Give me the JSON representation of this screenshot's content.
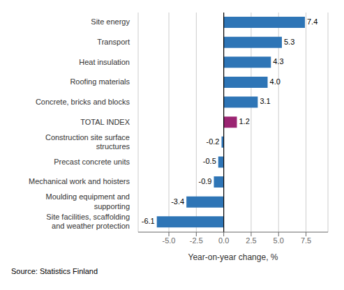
{
  "chart_data": {
    "type": "bar",
    "orientation": "horizontal",
    "categories": [
      "Site facilities, scaffolding and weather protection",
      "Moulding equipment and supporting",
      "Mechanical work and hoisters",
      "Precast concrete units",
      "Construction site surface structures",
      "TOTAL INDEX",
      "Concrete, bricks and blocks",
      "Roofing materials",
      "Heat insulation",
      "Transport",
      "Site energy"
    ],
    "values": [
      -6.1,
      -3.4,
      -0.9,
      -0.5,
      -0.2,
      1.2,
      3.1,
      4.0,
      4.3,
      5.3,
      7.4
    ],
    "value_labels": [
      "-6.1",
      "-3.4",
      "-0.9",
      "-0.5",
      "-0.2",
      "1.2",
      "3.1",
      "4.0",
      "4.3",
      "5.3",
      "7.4"
    ],
    "colors": [
      "#2e75b6",
      "#2e75b6",
      "#2e75b6",
      "#2e75b6",
      "#2e75b6",
      "#9b2472",
      "#2e75b6",
      "#2e75b6",
      "#2e75b6",
      "#2e75b6",
      "#2e75b6"
    ],
    "xlabel": "Year-on-year change, %",
    "xlim": [
      -7.8,
      9.5
    ],
    "xticks": [
      {
        "value": -5.0,
        "label": "-5.0"
      },
      -2.5,
      {
        "value": 0.0,
        "label": "0.0"
      },
      2.5,
      {
        "value": 5.0,
        "label": "5.0"
      },
      7.5
    ],
    "grid": true,
    "data_labels": true,
    "annotations": [
      "Source: Statistics Finland"
    ]
  }
}
